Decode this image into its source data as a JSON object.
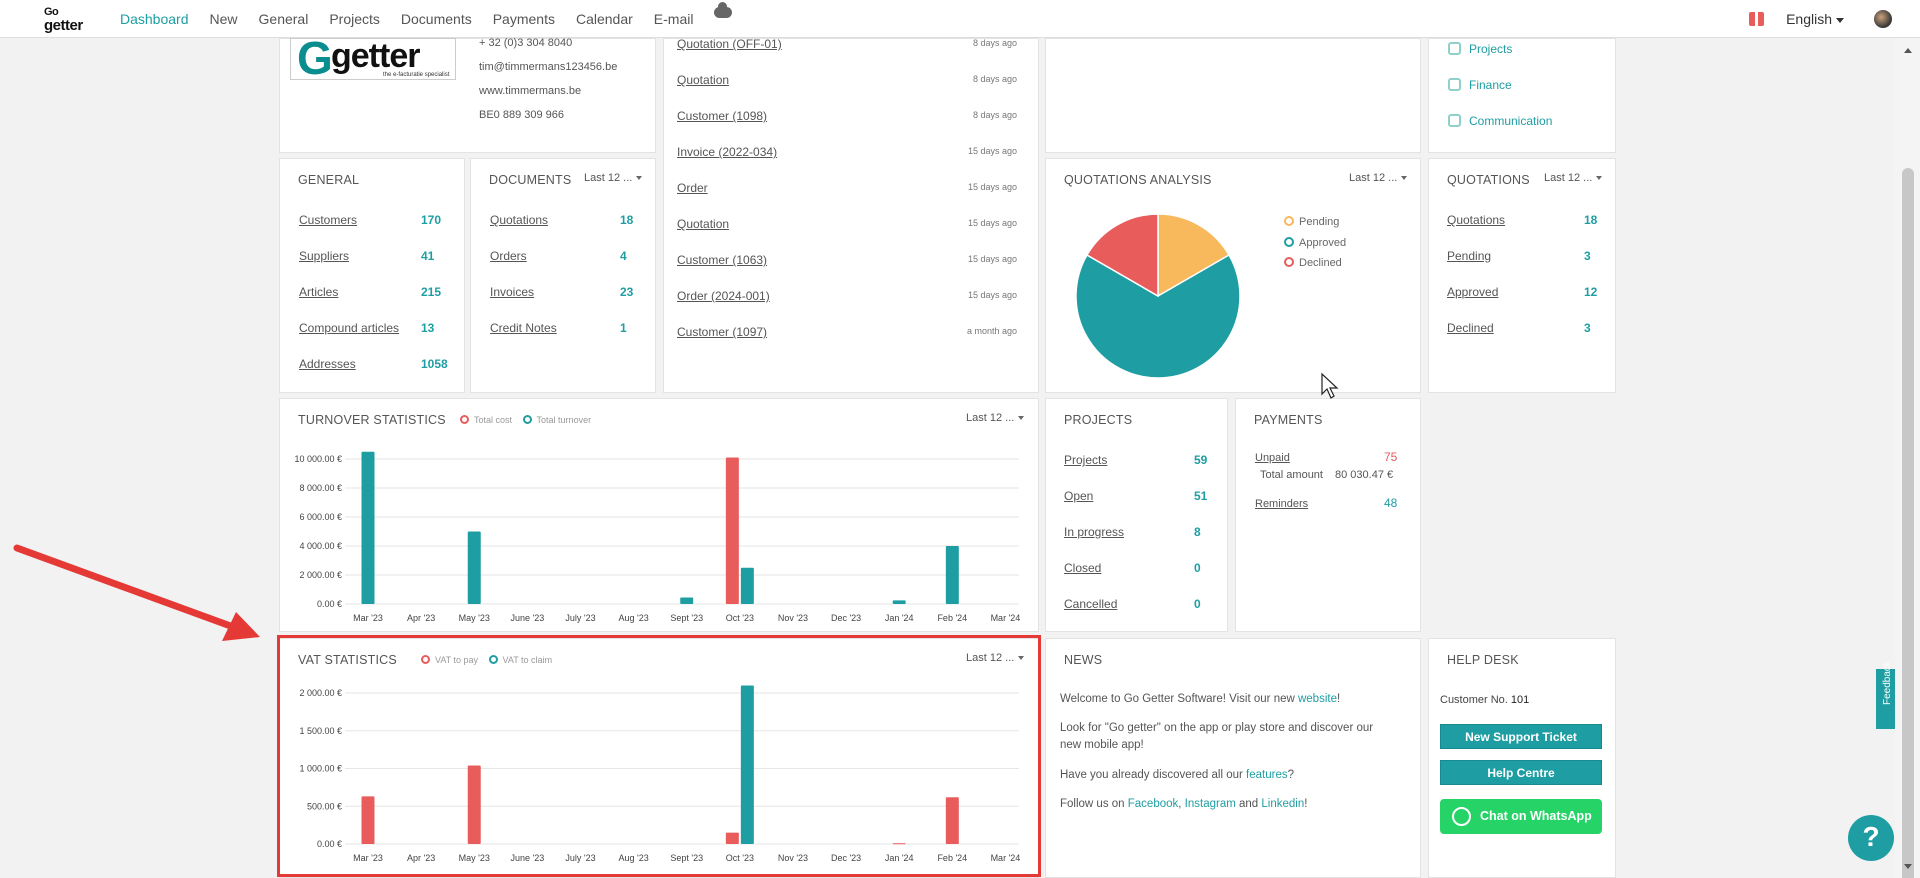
{
  "nav": {
    "items": [
      "Dashboard",
      "New",
      "General",
      "Projects",
      "Documents",
      "Payments",
      "Calendar",
      "E-mail"
    ],
    "language": "English"
  },
  "logo": {
    "go": "Go",
    "getter": "getter"
  },
  "company": {
    "logo_g": "G",
    "logo_rest": "getter",
    "logo_sub": "the e-facturatie specialist",
    "phone": "+ 32 (0)3 304 8040",
    "email": "tim@timmermans123456.be",
    "website": "www.timmermans.be",
    "vat": "BE0 889 309 966"
  },
  "activity": [
    {
      "label": "Quotation (OFF-01)",
      "time": "8 days ago"
    },
    {
      "label": "Quotation",
      "time": "8 days ago"
    },
    {
      "label": "Customer (1098)",
      "time": "8 days ago"
    },
    {
      "label": "Invoice (2022-034)",
      "time": "15 days ago"
    },
    {
      "label": "Order",
      "time": "15 days ago"
    },
    {
      "label": "Quotation",
      "time": "15 days ago"
    },
    {
      "label": "Customer (1063)",
      "time": "15 days ago"
    },
    {
      "label": "Order (2024-001)",
      "time": "15 days ago"
    },
    {
      "label": "Customer (1097)",
      "time": "a month ago"
    }
  ],
  "side_links": [
    "Projects",
    "Finance",
    "Communication"
  ],
  "general": {
    "title": "GENERAL",
    "rows": [
      {
        "label": "Customers",
        "value": "170"
      },
      {
        "label": "Suppliers",
        "value": "41"
      },
      {
        "label": "Articles",
        "value": "215"
      },
      {
        "label": "Compound articles",
        "value": "13"
      },
      {
        "label": "Addresses",
        "value": "1058"
      }
    ]
  },
  "documents": {
    "title": "DOCUMENTS",
    "period": "Last 12 ...",
    "rows": [
      {
        "label": "Quotations",
        "value": "18"
      },
      {
        "label": "Orders",
        "value": "4"
      },
      {
        "label": "Invoices",
        "value": "23"
      },
      {
        "label": "Credit Notes",
        "value": "1"
      }
    ]
  },
  "quotations_analysis": {
    "title": "QUOTATIONS ANALYSIS",
    "period": "Last 12 ...",
    "legend": [
      "Pending",
      "Approved",
      "Declined"
    ]
  },
  "quotations": {
    "title": "QUOTATIONS",
    "period": "Last 12 ...",
    "rows": [
      {
        "label": "Quotations",
        "value": "18"
      },
      {
        "label": "Pending",
        "value": "3"
      },
      {
        "label": "Approved",
        "value": "12"
      },
      {
        "label": "Declined",
        "value": "3"
      }
    ]
  },
  "turnover": {
    "title": "TURNOVER STATISTICS",
    "period": "Last 12 ...",
    "legend": [
      "Total cost",
      "Total turnover"
    ]
  },
  "vat": {
    "title": "VAT STATISTICS",
    "period": "Last 12 ...",
    "legend": [
      "VAT to pay",
      "VAT to claim"
    ]
  },
  "projects": {
    "title": "PROJECTS",
    "rows": [
      {
        "label": "Projects",
        "value": "59"
      },
      {
        "label": "Open",
        "value": "51"
      },
      {
        "label": "In progress",
        "value": "8"
      },
      {
        "label": "Closed",
        "value": "0"
      },
      {
        "label": "Cancelled",
        "value": "0"
      }
    ]
  },
  "payments": {
    "title": "PAYMENTS",
    "unpaid_label": "Unpaid",
    "unpaid_value": "75",
    "total_label": "Total amount",
    "total_value": "80 030.47 €",
    "reminders_label": "Reminders",
    "reminders_value": "48"
  },
  "news": {
    "title": "NEWS",
    "line1_pre": "Welcome to Go Getter Software! Visit our new ",
    "line1_link": "website",
    "line1_post": "!",
    "line2": "Look for \"Go getter\" on the app or play store and discover our new mobile app!",
    "line3_pre": "Have you already discovered all our ",
    "line3_link": "features",
    "line3_post": "?",
    "line4_pre": "Follow us on ",
    "facebook": "Facebook",
    "instagram": "Instagram",
    "and": "and",
    "linkedin": "Linkedin",
    "line4_post": "!"
  },
  "helpdesk": {
    "title": "HELP DESK",
    "customer_label": "Customer No.",
    "customer_no": "101",
    "support_button": "New Support Ticket",
    "help_button": "Help Centre",
    "whatsapp_button": "Chat on WhatsApp"
  },
  "feedback_label": "Feedback",
  "help_glyph": "?",
  "colors": {
    "accent": "#1e9ea3",
    "red": "#e85c5c",
    "orange": "#f8b85c"
  },
  "chart_data": [
    {
      "type": "pie",
      "categories": [
        "Pending",
        "Approved",
        "Declined"
      ],
      "values": [
        3,
        12,
        3
      ]
    },
    {
      "type": "bar",
      "title": "TURNOVER STATISTICS",
      "categories": [
        "Mar '23",
        "Apr '23",
        "May '23",
        "June '23",
        "July '23",
        "Aug '23",
        "Sept '23",
        "Oct '23",
        "Nov '23",
        "Dec '23",
        "Jan '24",
        "Feb '24",
        "Mar '24"
      ],
      "series": [
        {
          "name": "Total cost",
          "values": [
            0,
            0,
            0,
            0,
            0,
            0,
            0,
            10100,
            0,
            0,
            0,
            0,
            0
          ]
        },
        {
          "name": "Total turnover",
          "values": [
            10500,
            0,
            5000,
            0,
            0,
            0,
            450,
            2500,
            0,
            0,
            250,
            4000,
            0
          ]
        }
      ],
      "yticks": [
        "0.00 €",
        "2 000.00 €",
        "4 000.00 €",
        "6 000.00 €",
        "8 000.00 €",
        "10 000.00 €"
      ],
      "ylim": [
        0,
        10000
      ]
    },
    {
      "type": "bar",
      "title": "VAT STATISTICS",
      "categories": [
        "Mar '23",
        "Apr '23",
        "May '23",
        "June '23",
        "July '23",
        "Aug '23",
        "Sept '23",
        "Oct '23",
        "Nov '23",
        "Dec '23",
        "Jan '24",
        "Feb '24",
        "Mar '24"
      ],
      "series": [
        {
          "name": "VAT to pay",
          "values": [
            630,
            0,
            1040,
            0,
            0,
            0,
            0,
            150,
            0,
            0,
            10,
            620,
            0
          ]
        },
        {
          "name": "VAT to claim",
          "values": [
            0,
            0,
            0,
            0,
            0,
            0,
            0,
            2100,
            0,
            0,
            0,
            0,
            0
          ]
        }
      ],
      "yticks": [
        "0.00 €",
        "500.00 €",
        "1 000.00 €",
        "1 500.00 €",
        "2 000.00 €"
      ],
      "ylim": [
        0,
        2000
      ]
    }
  ]
}
